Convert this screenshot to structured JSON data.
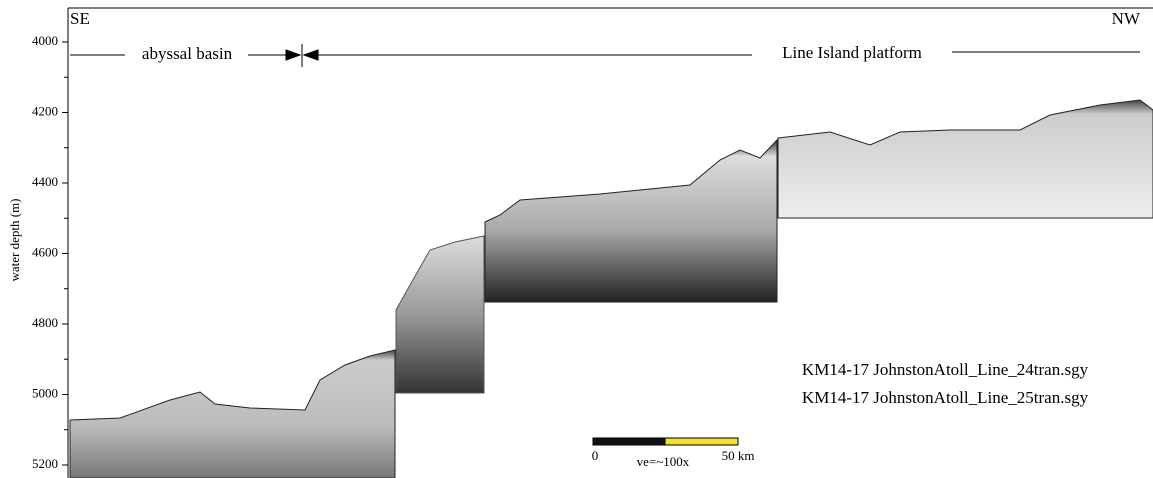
{
  "chart_data": {
    "type": "seismic-profile",
    "ylabel": "water depth (m)",
    "ylim": [
      3900,
      5235
    ],
    "yticks": [
      4000,
      4200,
      4400,
      4600,
      4800,
      5000,
      5200
    ],
    "minor_yticks": [
      4100,
      4300,
      4500,
      4700,
      4900,
      5100
    ],
    "annotations": {
      "left_end": "SE",
      "right_end": "NW",
      "basin": "abyssal basin",
      "platform": "Line Island platform",
      "files": [
        "KM14-17 JohnstonAtoll_Line_24tran.sgy",
        "KM14-17 JohnstonAtoll_Line_25tran.sgy"
      ],
      "scale_start": "0",
      "scale_ve": "ve=~100x",
      "scale_end": "50 km"
    }
  }
}
